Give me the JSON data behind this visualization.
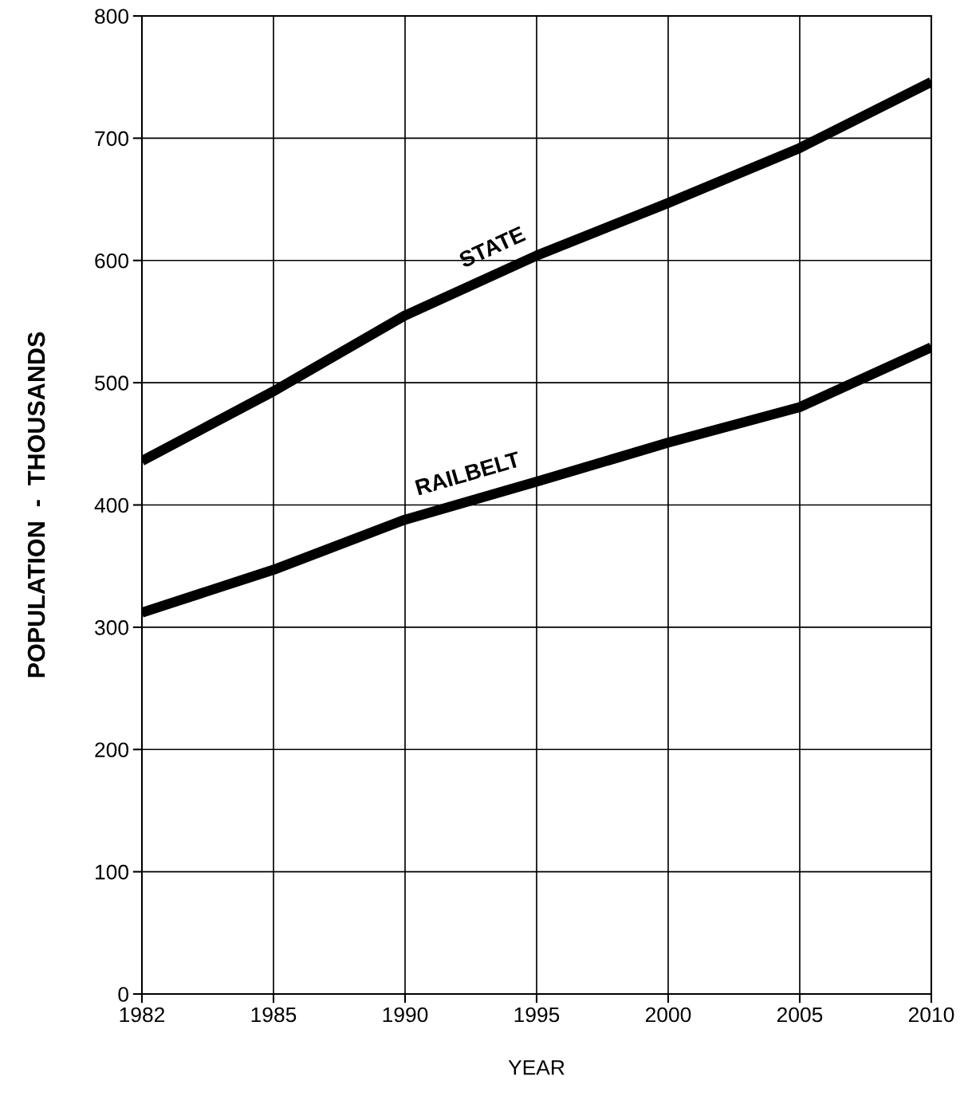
{
  "chart_data": {
    "type": "line",
    "xlabel": "YEAR",
    "ylabel": "POPULATION  -  THOUSANDS",
    "categories": [
      "1982",
      "1985",
      "1990",
      "1995",
      "2000",
      "2005",
      "2010"
    ],
    "series": [
      {
        "name": "STATE",
        "color": "#000000",
        "values": [
          436,
          493,
          555,
          604,
          647,
          692,
          746
        ]
      },
      {
        "name": "RAILBELT",
        "color": "#000000",
        "values": [
          312,
          347,
          388,
          419,
          451,
          480,
          529
        ]
      }
    ],
    "ylim": [
      0,
      800
    ],
    "yticks": [
      0,
      100,
      200,
      300,
      400,
      500,
      600,
      700,
      800
    ],
    "grid": true,
    "legend": false,
    "marker": "none",
    "line_style": "solid"
  }
}
